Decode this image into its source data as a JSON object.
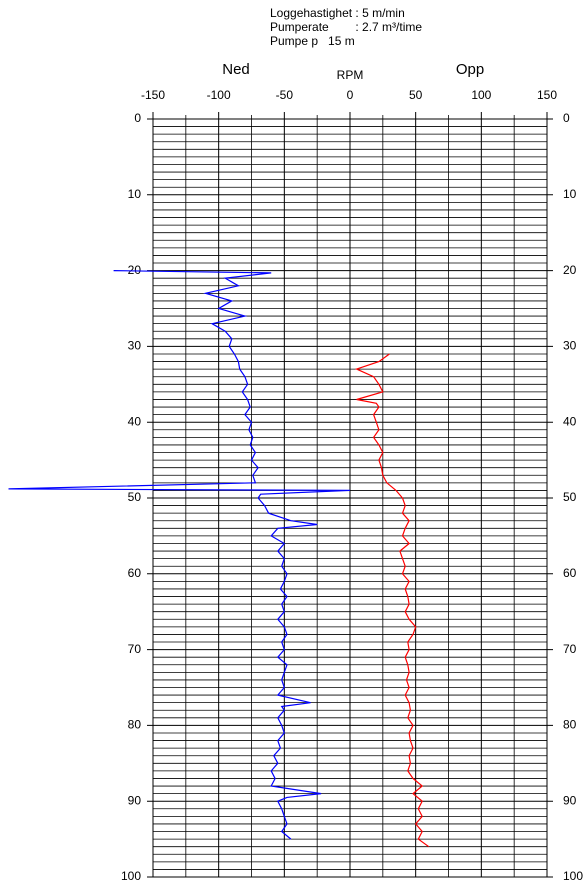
{
  "chart_data": {
    "type": "depth-log",
    "header": [
      "Loggehastighet : 5 m/min",
      "Pumperate        : 2.7 m³/time",
      "Pumpe p   15 m"
    ],
    "xlabel": "RPM",
    "xlim": [
      -150,
      150
    ],
    "xticks": [
      -150,
      -100,
      -50,
      0,
      50,
      100,
      150
    ],
    "x_minor_ticks": [
      -125,
      -75,
      -25,
      25,
      75,
      125
    ],
    "ylim": [
      0,
      100
    ],
    "yticks": [
      0,
      10,
      20,
      30,
      40,
      50,
      60,
      70,
      80,
      90,
      100
    ],
    "y_grid": [
      1,
      2,
      3,
      4,
      5,
      6,
      7,
      8,
      9,
      11,
      12,
      13,
      14,
      15,
      16,
      17,
      18,
      19,
      21,
      22,
      23,
      24,
      25,
      26,
      27,
      28,
      29,
      31,
      32,
      33,
      34,
      35,
      36,
      37,
      38,
      39,
      41,
      42,
      43,
      44,
      45,
      46,
      47,
      48,
      49,
      51,
      52,
      53,
      54,
      55,
      56,
      57,
      58,
      59,
      61,
      62,
      63,
      64,
      65,
      66,
      67,
      68,
      69,
      71,
      72,
      73,
      74,
      75,
      76,
      77,
      78,
      79,
      81,
      82,
      83,
      84,
      85,
      86,
      87,
      88,
      89,
      91,
      92,
      93,
      94,
      95,
      96,
      97,
      98,
      99
    ],
    "grid": true,
    "series": [
      {
        "name": "Ned",
        "color": "#0000ff",
        "depth": [
          20,
          20.3,
          21,
          22,
          23,
          24,
          25,
          26,
          27,
          28,
          29,
          30,
          31,
          32,
          33,
          34,
          35,
          36,
          37,
          38,
          39,
          40,
          41,
          42,
          43,
          44,
          45,
          46,
          47,
          48,
          48.8,
          49,
          49.5,
          50,
          51,
          52,
          53,
          53.5,
          54,
          55,
          56,
          57,
          58,
          59,
          60,
          61,
          62,
          63,
          64,
          65,
          66,
          67,
          68,
          69,
          70,
          71,
          72,
          73,
          74,
          75,
          76,
          77,
          77.5,
          78,
          79,
          80,
          81,
          82,
          83,
          84,
          85,
          86,
          87,
          88,
          89,
          89.5,
          90,
          91,
          92,
          93,
          94,
          95
        ],
        "values": [
          -180,
          -60,
          -95,
          -85,
          -110,
          -90,
          -100,
          -80,
          -105,
          -95,
          -90,
          -92,
          -88,
          -85,
          -84,
          -80,
          -78,
          -82,
          -78,
          -76,
          -80,
          -75,
          -77,
          -74,
          -76,
          -72,
          -75,
          -70,
          -74,
          -72,
          -260,
          0,
          -68,
          -70,
          -65,
          -62,
          -45,
          -25,
          -55,
          -60,
          -50,
          -55,
          -50,
          -52,
          -48,
          -50,
          -53,
          -48,
          -52,
          -50,
          -55,
          -50,
          -48,
          -52,
          -50,
          -55,
          -48,
          -50,
          -52,
          -50,
          -55,
          -30,
          -52,
          -50,
          -55,
          -52,
          -50,
          -55,
          -53,
          -58,
          -55,
          -60,
          -57,
          -60,
          -22,
          -48,
          -55,
          -52,
          -50,
          -48,
          -52,
          -45
        ]
      },
      {
        "name": "Opp",
        "color": "#ff0000",
        "depth": [
          31,
          32,
          33,
          34,
          35,
          36,
          37,
          37.5,
          38,
          39,
          40,
          41,
          42,
          43,
          44,
          45,
          46,
          47,
          48,
          49,
          50,
          51,
          52,
          53,
          54,
          55,
          56,
          57,
          58,
          59,
          60,
          61,
          62,
          63,
          64,
          65,
          66,
          67,
          68,
          69,
          70,
          71,
          72,
          73,
          74,
          75,
          76,
          77,
          78,
          79,
          80,
          81,
          82,
          83,
          84,
          85,
          86,
          87,
          88,
          89,
          90,
          91,
          92,
          93,
          94,
          95,
          96
        ],
        "values": [
          30,
          22,
          5,
          18,
          22,
          25,
          5,
          20,
          22,
          18,
          20,
          22,
          18,
          22,
          25,
          22,
          24,
          25,
          28,
          35,
          40,
          42,
          40,
          45,
          42,
          40,
          45,
          38,
          40,
          42,
          40,
          45,
          42,
          44,
          45,
          42,
          45,
          50,
          48,
          44,
          45,
          42,
          44,
          45,
          43,
          45,
          42,
          45,
          46,
          44,
          48,
          45,
          46,
          48,
          45,
          46,
          44,
          48,
          55,
          48,
          55,
          52,
          55,
          50,
          55,
          52,
          60
        ]
      }
    ]
  }
}
